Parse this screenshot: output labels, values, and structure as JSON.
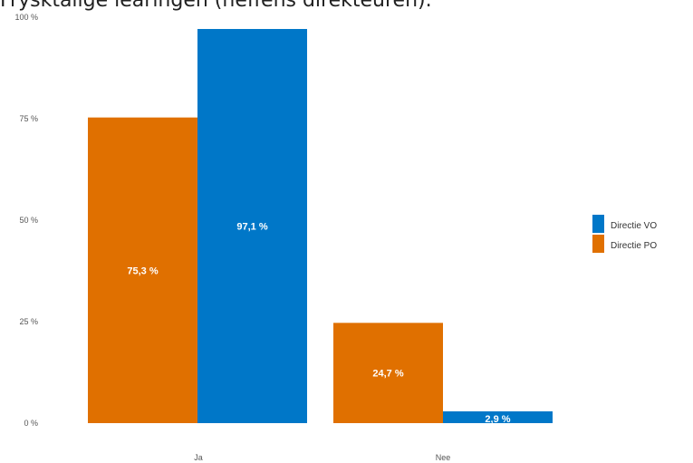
{
  "page": {
    "title": "Frysktalige learingen (neffens direkteuren)."
  },
  "chart_data": {
    "type": "bar",
    "categories": [
      "Ja",
      "Nee"
    ],
    "series": [
      {
        "name": "Directie PO",
        "values": [
          75.3,
          24.7
        ],
        "labels": [
          "75,3 %",
          "24,7 %"
        ],
        "color": "#e07000"
      },
      {
        "name": "Directie VO",
        "values": [
          97.1,
          2.9
        ],
        "labels": [
          "97,1 %",
          "2,9 %"
        ],
        "color": "#0077c8"
      }
    ],
    "yticks": [
      "0 %",
      "25 %",
      "50 %",
      "75 %",
      "100 %"
    ],
    "ytick_values": [
      0,
      25,
      50,
      75,
      100
    ],
    "ylim": [
      0,
      100
    ],
    "legend": {
      "placement": "right",
      "entries": [
        "Directie VO",
        "Directie PO"
      ]
    },
    "grid": false
  }
}
